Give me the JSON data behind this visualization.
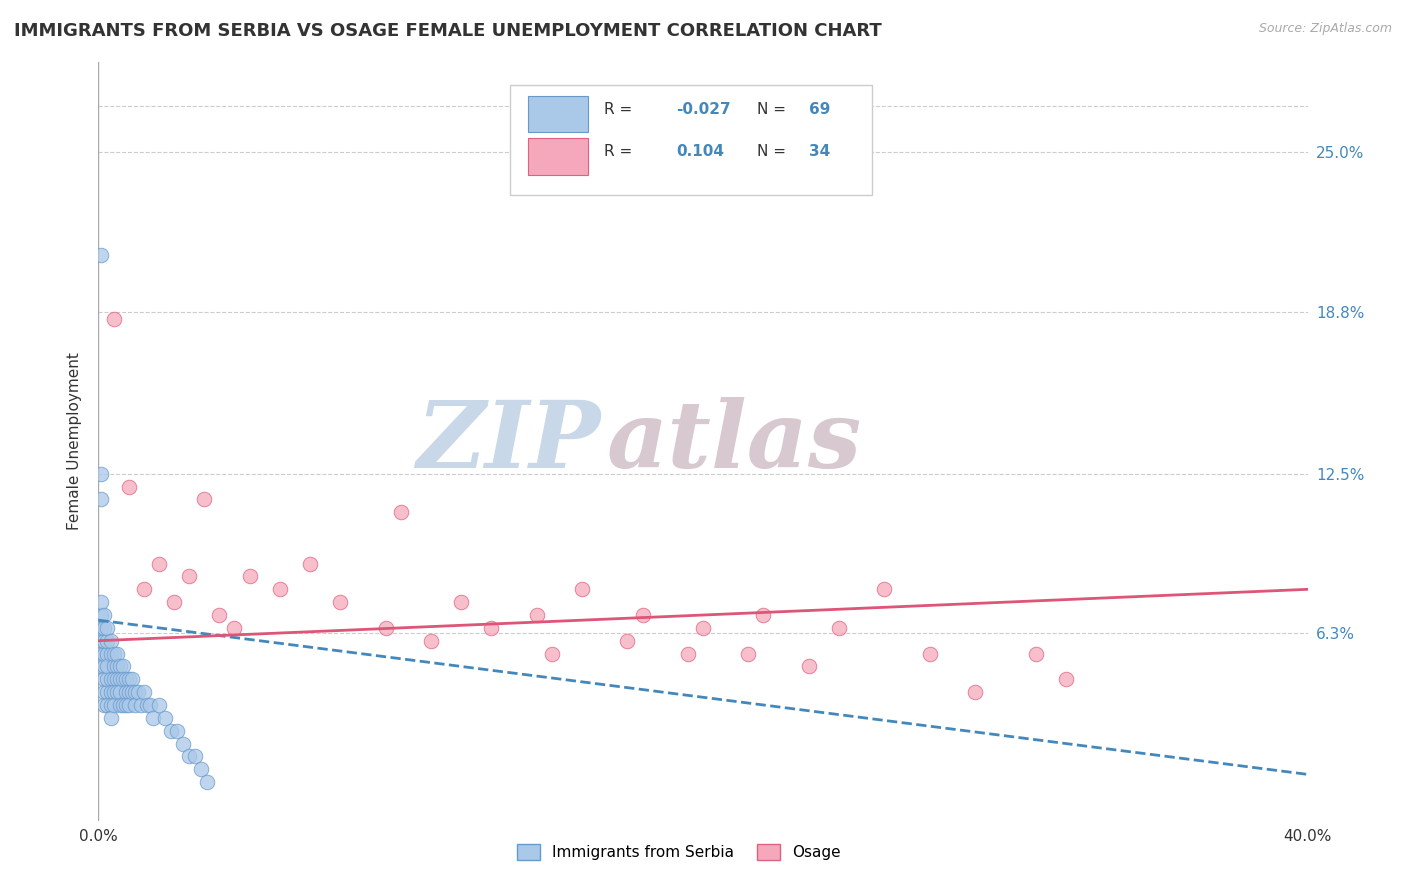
{
  "title": "IMMIGRANTS FROM SERBIA VS OSAGE FEMALE UNEMPLOYMENT CORRELATION CHART",
  "source_text": "Source: ZipAtlas.com",
  "ylabel": "Female Unemployment",
  "watermark_zip": "ZIP",
  "watermark_atlas": "atlas",
  "xlim": [
    0.0,
    0.4
  ],
  "ylim": [
    -0.01,
    0.285
  ],
  "yticks": [
    0.063,
    0.125,
    0.188,
    0.25
  ],
  "ytick_labels": [
    "6.3%",
    "12.5%",
    "18.8%",
    "25.0%"
  ],
  "xticks": [
    0.0,
    0.1,
    0.2,
    0.3,
    0.4
  ],
  "xtick_labels": [
    "0.0%",
    "",
    "",
    "",
    "40.0%"
  ],
  "legend_r1_label": "R = ",
  "legend_r1_val": "-0.027",
  "legend_n1_label": "N = ",
  "legend_n1_val": "69",
  "legend_r2_label": "R =  ",
  "legend_r2_val": "0.104",
  "legend_n2_label": "N = ",
  "legend_n2_val": "34",
  "series1_label": "Immigrants from Serbia",
  "series2_label": "Osage",
  "series1_color": "#aac8e8",
  "series2_color": "#f5a8bc",
  "series1_edge": "#6699cc",
  "series2_edge": "#e06080",
  "trendline1_color": "#4488bb",
  "trendline2_color": "#dd5577",
  "title_fontsize": 13,
  "axis_fontsize": 11,
  "tick_fontsize": 11,
  "blue_scatter_x": [
    0.001,
    0.001,
    0.001,
    0.001,
    0.001,
    0.001,
    0.001,
    0.002,
    0.002,
    0.002,
    0.002,
    0.002,
    0.002,
    0.002,
    0.002,
    0.003,
    0.003,
    0.003,
    0.003,
    0.003,
    0.003,
    0.003,
    0.004,
    0.004,
    0.004,
    0.004,
    0.004,
    0.004,
    0.005,
    0.005,
    0.005,
    0.005,
    0.005,
    0.006,
    0.006,
    0.006,
    0.006,
    0.007,
    0.007,
    0.007,
    0.007,
    0.008,
    0.008,
    0.008,
    0.009,
    0.009,
    0.009,
    0.01,
    0.01,
    0.01,
    0.011,
    0.011,
    0.012,
    0.012,
    0.013,
    0.014,
    0.015,
    0.016,
    0.017,
    0.018,
    0.02,
    0.022,
    0.024,
    0.026,
    0.028,
    0.03,
    0.032,
    0.034,
    0.036
  ],
  "blue_scatter_y": [
    0.055,
    0.06,
    0.065,
    0.07,
    0.075,
    0.055,
    0.05,
    0.05,
    0.055,
    0.06,
    0.065,
    0.07,
    0.045,
    0.04,
    0.035,
    0.055,
    0.06,
    0.065,
    0.04,
    0.045,
    0.05,
    0.035,
    0.055,
    0.06,
    0.045,
    0.04,
    0.035,
    0.03,
    0.05,
    0.055,
    0.045,
    0.04,
    0.035,
    0.05,
    0.055,
    0.045,
    0.04,
    0.05,
    0.045,
    0.04,
    0.035,
    0.05,
    0.045,
    0.035,
    0.045,
    0.04,
    0.035,
    0.045,
    0.04,
    0.035,
    0.045,
    0.04,
    0.04,
    0.035,
    0.04,
    0.035,
    0.04,
    0.035,
    0.035,
    0.03,
    0.035,
    0.03,
    0.025,
    0.025,
    0.02,
    0.015,
    0.015,
    0.01,
    0.005
  ],
  "blue_outlier_x": [
    0.001
  ],
  "blue_outlier_y": [
    0.21
  ],
  "blue_high1_x": [
    0.001
  ],
  "blue_high1_y": [
    0.125
  ],
  "blue_high2_x": [
    0.001
  ],
  "blue_high2_y": [
    0.115
  ],
  "pink_scatter_x": [
    0.005,
    0.01,
    0.015,
    0.02,
    0.025,
    0.03,
    0.035,
    0.04,
    0.045,
    0.05,
    0.06,
    0.07,
    0.08,
    0.095,
    0.1,
    0.11,
    0.12,
    0.13,
    0.145,
    0.15,
    0.16,
    0.175,
    0.18,
    0.195,
    0.2,
    0.215,
    0.22,
    0.235,
    0.245,
    0.26,
    0.275,
    0.29,
    0.31,
    0.32
  ],
  "pink_scatter_y": [
    0.185,
    0.12,
    0.08,
    0.09,
    0.075,
    0.085,
    0.115,
    0.07,
    0.065,
    0.085,
    0.08,
    0.09,
    0.075,
    0.065,
    0.11,
    0.06,
    0.075,
    0.065,
    0.07,
    0.055,
    0.08,
    0.06,
    0.07,
    0.055,
    0.065,
    0.055,
    0.07,
    0.05,
    0.065,
    0.08,
    0.055,
    0.04,
    0.055,
    0.045
  ],
  "trendline1_x0": 0.0,
  "trendline1_x1": 0.4,
  "trendline1_y0": 0.068,
  "trendline1_y1": 0.008,
  "trendline2_x0": 0.0,
  "trendline2_x1": 0.4,
  "trendline2_y0": 0.06,
  "trendline2_y1": 0.08
}
